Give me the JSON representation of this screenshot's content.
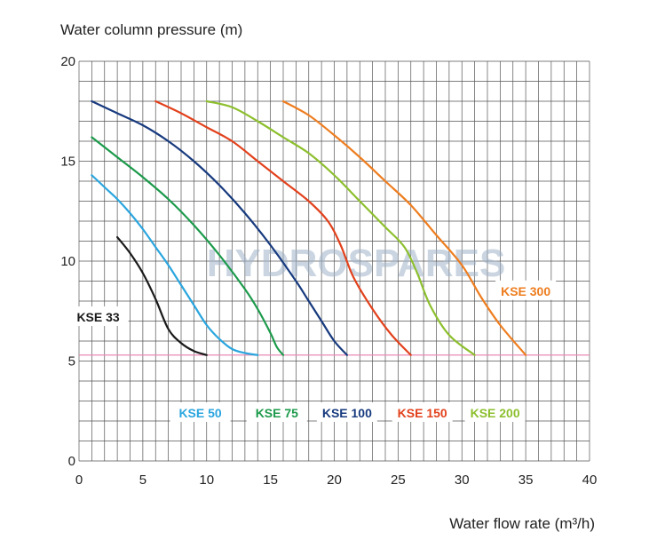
{
  "chart_data": {
    "type": "line",
    "title": "Water column pressure (m)",
    "xlabel": "Water flow rate (m³/h)",
    "ylabel": "Water column pressure (m)",
    "xlim": [
      0,
      40
    ],
    "ylim": [
      0,
      20
    ],
    "x_ticks": [
      "0",
      "5",
      "10",
      "15",
      "20",
      "25",
      "30",
      "35",
      "40"
    ],
    "y_ticks": [
      "0",
      "5",
      "10",
      "15",
      "20"
    ],
    "grid": true,
    "watermark": "HYDROSPARES",
    "reference_line": {
      "y": 5.3,
      "color": "#e889b5"
    },
    "series": [
      {
        "name": "KSE 33",
        "color": "#1a1a1a",
        "points": [
          [
            3,
            11.2
          ],
          [
            4,
            10.4
          ],
          [
            5,
            9.4
          ],
          [
            6,
            8.1
          ],
          [
            7,
            6.6
          ],
          [
            8,
            5.9
          ],
          [
            9,
            5.5
          ],
          [
            10,
            5.3
          ]
        ]
      },
      {
        "name": "KSE 50",
        "color": "#2aa5de",
        "points": [
          [
            1,
            14.3
          ],
          [
            2,
            13.7
          ],
          [
            3,
            13.1
          ],
          [
            4,
            12.4
          ],
          [
            5,
            11.6
          ],
          [
            6,
            10.7
          ],
          [
            7,
            9.8
          ],
          [
            8,
            8.8
          ],
          [
            9,
            7.8
          ],
          [
            10,
            6.8
          ],
          [
            11,
            6.1
          ],
          [
            12,
            5.6
          ],
          [
            13,
            5.4
          ],
          [
            14,
            5.3
          ]
        ]
      },
      {
        "name": "KSE 75",
        "color": "#1c9a4b",
        "points": [
          [
            1,
            16.2
          ],
          [
            3,
            15.2
          ],
          [
            5,
            14.2
          ],
          [
            7,
            13.1
          ],
          [
            9,
            11.8
          ],
          [
            11,
            10.3
          ],
          [
            13,
            8.6
          ],
          [
            14,
            7.6
          ],
          [
            15,
            6.4
          ],
          [
            15.5,
            5.7
          ],
          [
            16,
            5.3
          ]
        ]
      },
      {
        "name": "KSE 100",
        "color": "#173a7e",
        "points": [
          [
            1,
            18
          ],
          [
            3,
            17.4
          ],
          [
            5,
            16.8
          ],
          [
            7,
            16
          ],
          [
            9,
            15
          ],
          [
            11,
            13.8
          ],
          [
            13,
            12.4
          ],
          [
            15,
            10.8
          ],
          [
            17,
            9
          ],
          [
            18,
            8
          ],
          [
            19,
            7
          ],
          [
            20,
            6
          ],
          [
            21,
            5.3
          ]
        ]
      },
      {
        "name": "KSE 150",
        "color": "#e2411c",
        "points": [
          [
            6,
            18
          ],
          [
            8,
            17.4
          ],
          [
            10,
            16.7
          ],
          [
            12,
            16
          ],
          [
            14,
            15
          ],
          [
            16,
            14
          ],
          [
            18,
            13
          ],
          [
            19.5,
            12
          ],
          [
            20.5,
            10.8
          ],
          [
            21.5,
            9.2
          ],
          [
            23,
            7.6
          ],
          [
            24.5,
            6.3
          ],
          [
            26,
            5.3
          ]
        ]
      },
      {
        "name": "KSE 200",
        "color": "#8dbf2e",
        "points": [
          [
            10,
            18
          ],
          [
            12,
            17.7
          ],
          [
            14,
            17
          ],
          [
            16,
            16.2
          ],
          [
            18,
            15.4
          ],
          [
            20,
            14.3
          ],
          [
            22,
            13
          ],
          [
            24,
            11.7
          ],
          [
            25.5,
            10.7
          ],
          [
            26.5,
            9.4
          ],
          [
            27.5,
            7.8
          ],
          [
            29,
            6.3
          ],
          [
            31,
            5.3
          ]
        ]
      },
      {
        "name": "KSE 300",
        "color": "#ee7d1f",
        "points": [
          [
            16,
            18
          ],
          [
            18,
            17.3
          ],
          [
            20,
            16.3
          ],
          [
            22,
            15.2
          ],
          [
            24,
            14
          ],
          [
            26,
            12.8
          ],
          [
            28,
            11.3
          ],
          [
            30,
            9.8
          ],
          [
            31.5,
            8.2
          ],
          [
            33,
            6.8
          ],
          [
            35,
            5.3
          ]
        ]
      }
    ]
  }
}
